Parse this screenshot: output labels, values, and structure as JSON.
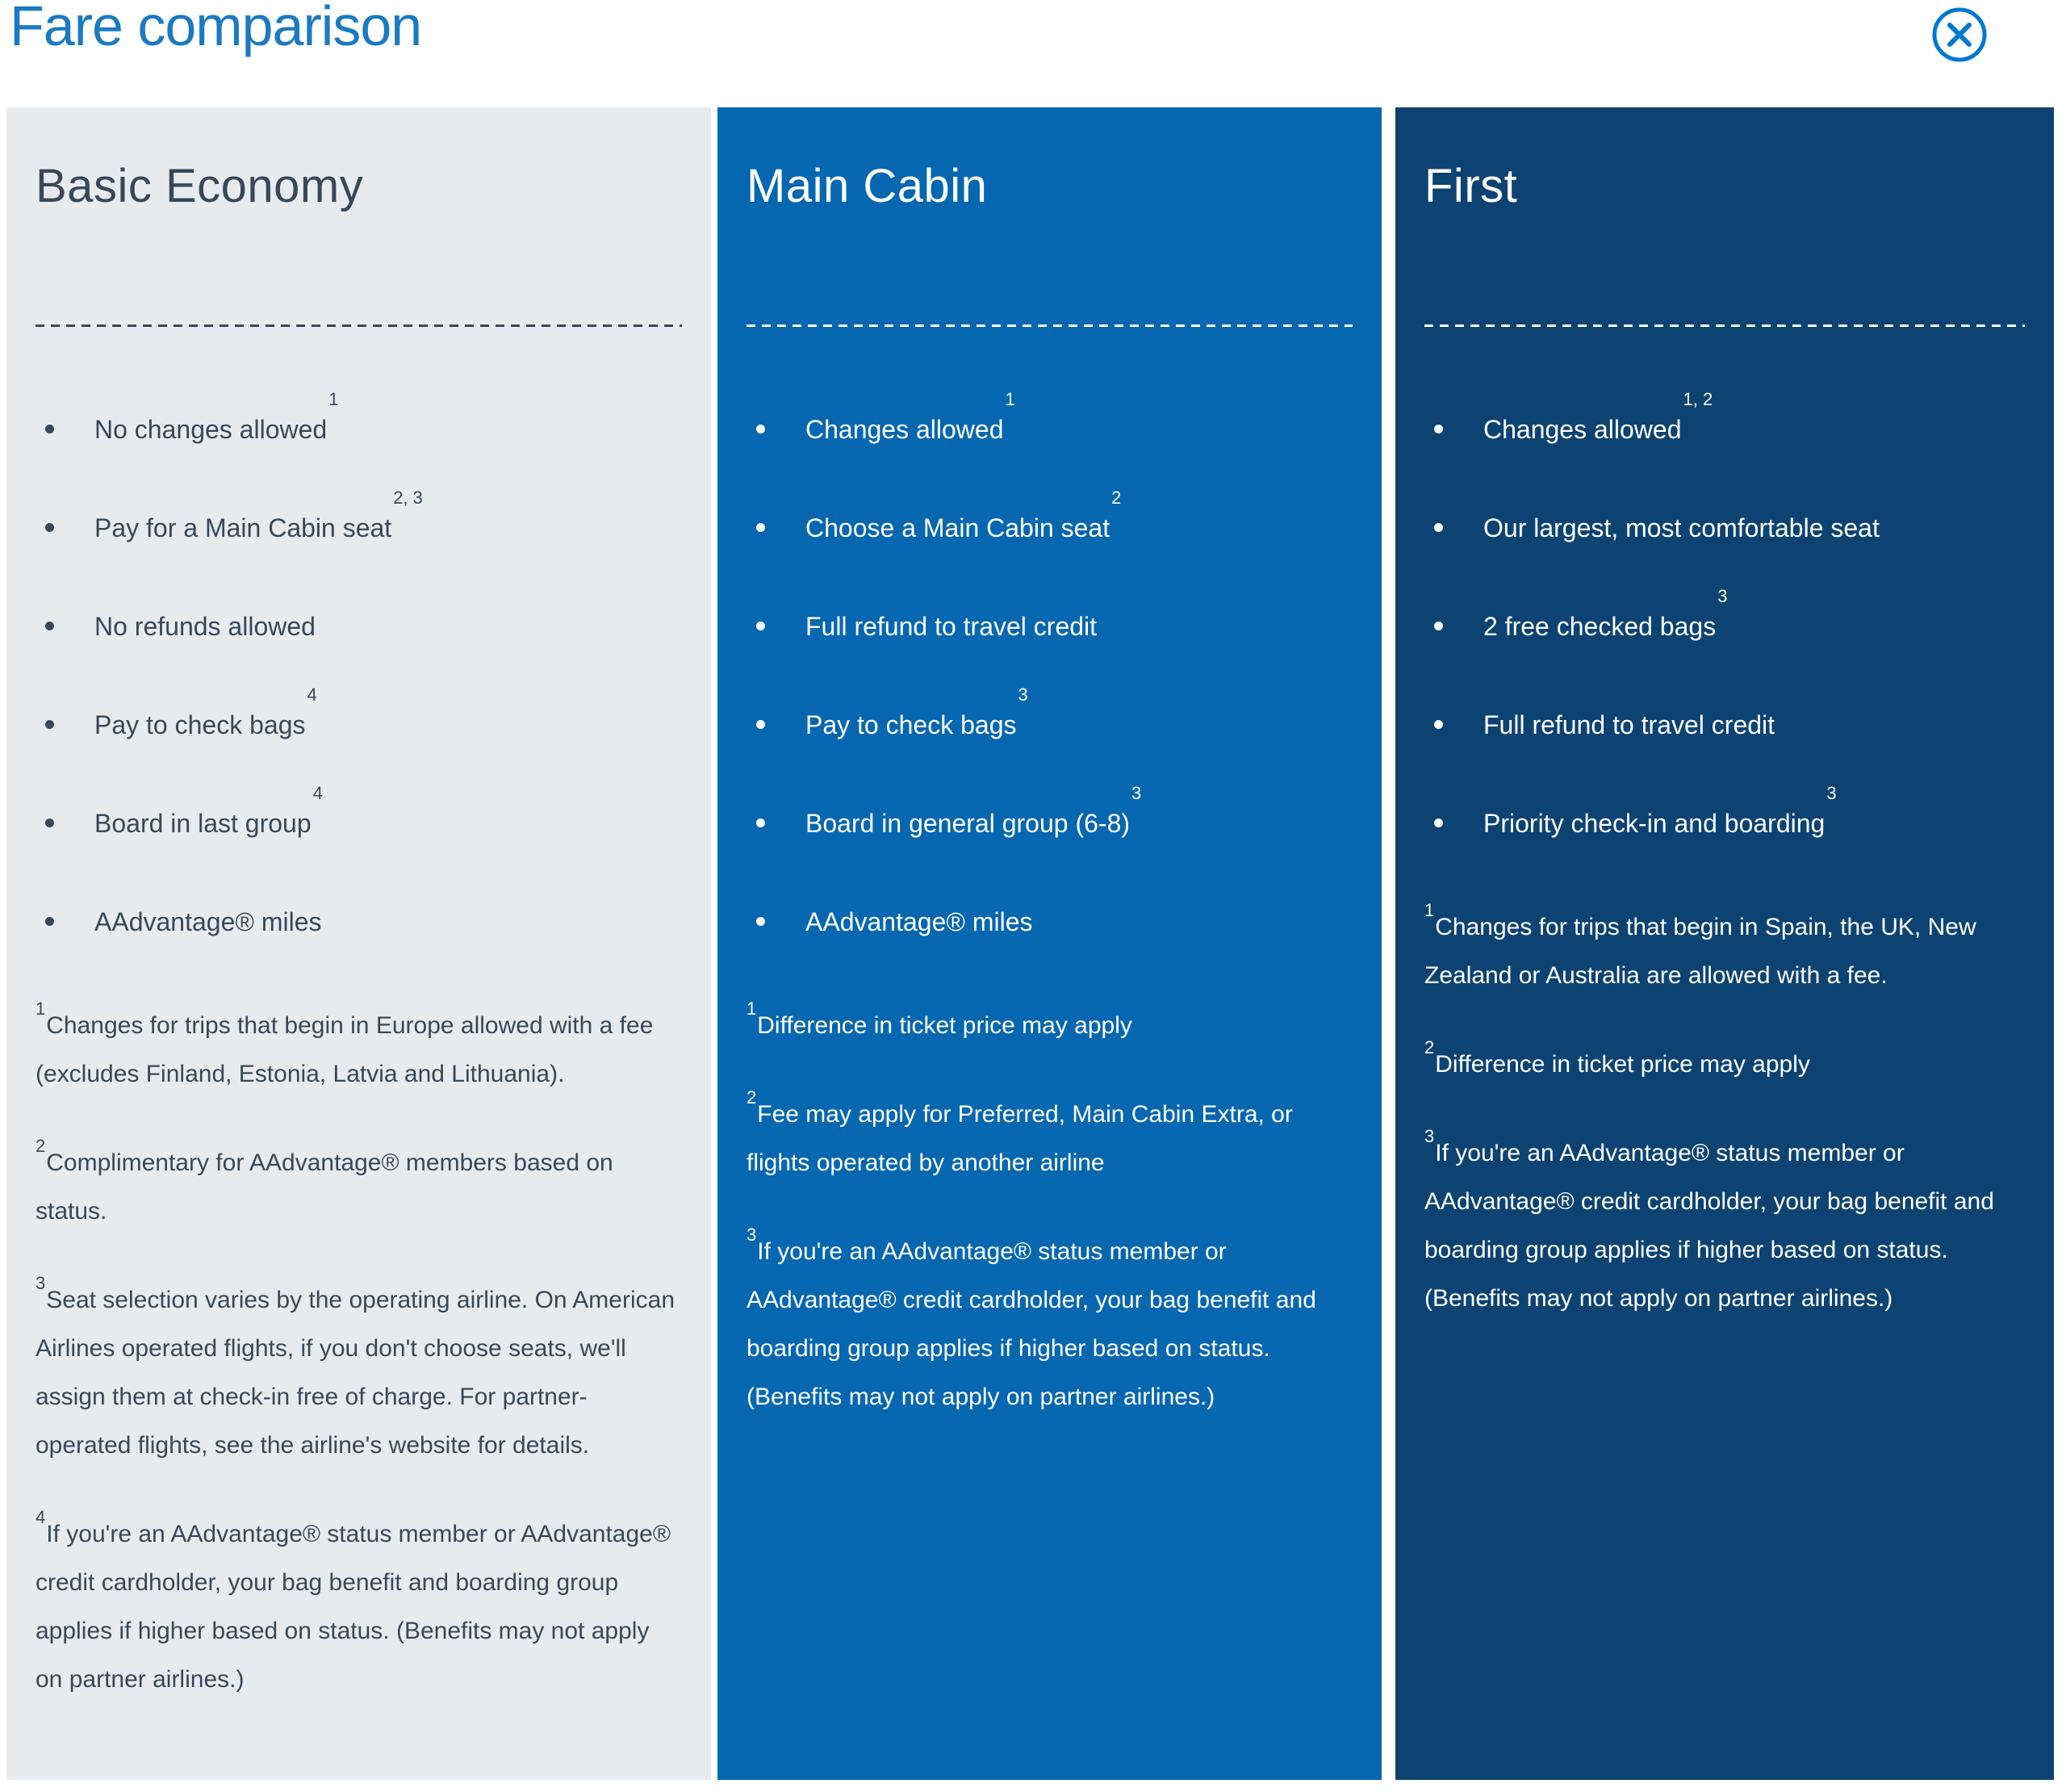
{
  "modal": {
    "title": "Fare comparison",
    "close_label": "Close"
  },
  "colors": {
    "title_blue": "#1B7AC2",
    "accent_blue": "#0078D2",
    "basic_bg": "#E8EBEE",
    "basic_text": "#36495A",
    "main_bg": "#0667B1",
    "first_bg": "#0C4373",
    "light_text": "#FFFFFF"
  },
  "icons": {
    "close": "circle-x"
  },
  "columns": [
    {
      "id": "basic-economy",
      "name": "Basic Economy",
      "theme": "light",
      "bullets": [
        {
          "text": "No changes allowed",
          "sup": "1"
        },
        {
          "text": "Pay for a Main Cabin seat",
          "sup": "2, 3"
        },
        {
          "text": "No refunds allowed",
          "sup": ""
        },
        {
          "text": "Pay to check bags",
          "sup": "4"
        },
        {
          "text": "Board in last group",
          "sup": "4"
        },
        {
          "text": "AAdvantage® miles",
          "sup": ""
        }
      ],
      "footnotes": [
        {
          "sup": "1",
          "text": "Changes for trips that begin in Europe allowed with a fee (excludes Finland, Estonia, Latvia and Lithuania)."
        },
        {
          "sup": "2",
          "text": "Complimentary for AAdvantage® members based on status."
        },
        {
          "sup": "3",
          "text": "Seat selection varies by the operating airline. On American Airlines operated flights, if you don't choose seats, we'll assign them at check-in free of charge. For partner-operated flights, see the airline's website for details."
        },
        {
          "sup": "4",
          "text": "If you're an AAdvantage® status member or AAdvantage® credit cardholder, your bag benefit and boarding group applies if higher based on status. (Benefits may not apply on partner airlines.)"
        }
      ]
    },
    {
      "id": "main-cabin",
      "name": "Main Cabin",
      "theme": "main",
      "bullets": [
        {
          "text": "Changes allowed",
          "sup": "1"
        },
        {
          "text": "Choose a Main Cabin seat",
          "sup": "2"
        },
        {
          "text": "Full refund to travel credit",
          "sup": ""
        },
        {
          "text": "Pay to check bags",
          "sup": "3"
        },
        {
          "text": "Board in general group (6-8)",
          "sup": "3"
        },
        {
          "text": "AAdvantage® miles",
          "sup": ""
        }
      ],
      "footnotes": [
        {
          "sup": "1",
          "text": "Difference in ticket price may apply"
        },
        {
          "sup": "2",
          "text": "Fee may apply for Preferred, Main Cabin Extra, or flights operated by another airline"
        },
        {
          "sup": "3",
          "text": "If you're an AAdvantage® status member or AAdvantage® credit cardholder, your bag benefit and boarding group applies if higher based on status. (Benefits may not apply on partner airlines.)"
        }
      ]
    },
    {
      "id": "first",
      "name": "First",
      "theme": "first",
      "bullets": [
        {
          "text": "Changes allowed",
          "sup": "1, 2"
        },
        {
          "text": "Our largest, most comfortable seat",
          "sup": ""
        },
        {
          "text": "2 free checked bags",
          "sup": "3"
        },
        {
          "text": "Full refund to travel credit",
          "sup": ""
        },
        {
          "text": "Priority check-in and boarding",
          "sup": "3"
        }
      ],
      "footnotes": [
        {
          "sup": "1",
          "text": "Changes for trips that begin in Spain, the UK, New Zealand or Australia are allowed with a fee."
        },
        {
          "sup": "2",
          "text": "Difference in ticket price may apply"
        },
        {
          "sup": "3",
          "text": "If you're an AAdvantage® status member or AAdvantage® credit cardholder, your bag benefit and boarding group applies if higher based on status. (Benefits may not apply on partner airlines.)"
        }
      ]
    }
  ]
}
